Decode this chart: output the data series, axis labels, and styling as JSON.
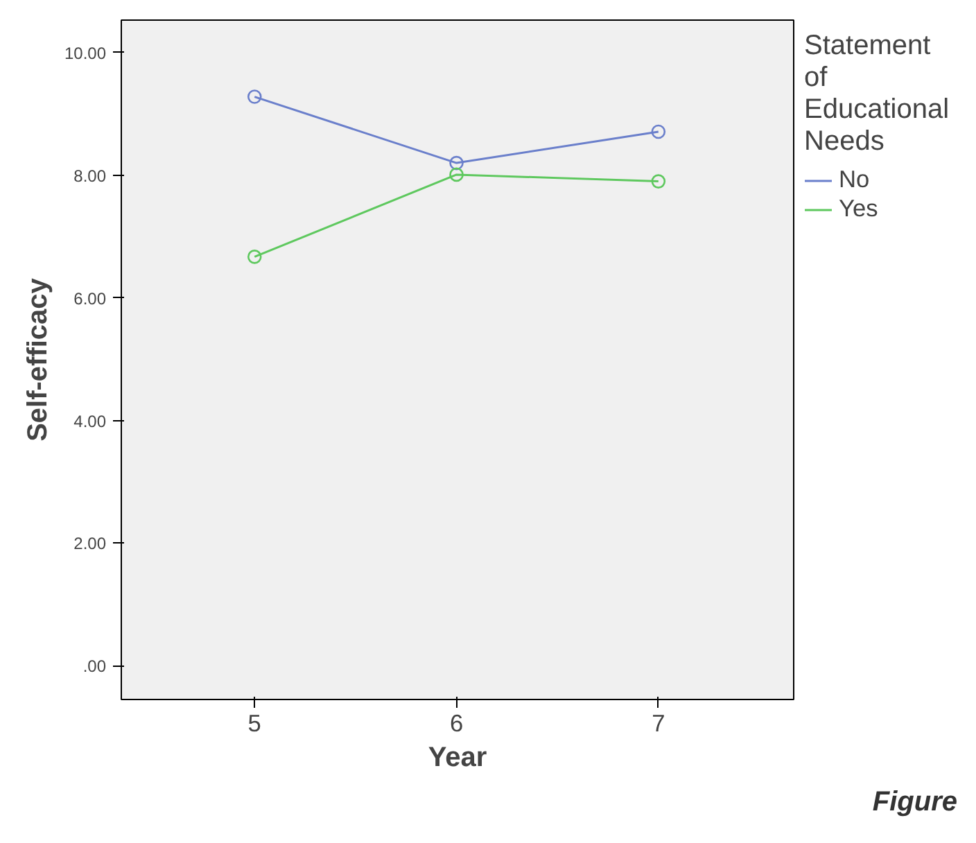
{
  "chart_data": {
    "type": "line",
    "xlabel": "Year",
    "ylabel": "Self-efficacy",
    "legend_title": "Statement of Educational Needs",
    "x": [
      5,
      6,
      7
    ],
    "series": [
      {
        "name": "No",
        "color": "#6a7fcb",
        "values": [
          9.28,
          8.2,
          8.71
        ]
      },
      {
        "name": "Yes",
        "color": "#5ec85e",
        "values": [
          6.67,
          8.01,
          7.9
        ]
      }
    ],
    "xlim": [
      4.34,
      7.67
    ],
    "xticks": [
      5,
      6,
      7
    ],
    "ylim": [
      -0.55,
      10.53
    ],
    "yticks": [
      {
        "value": 0,
        "label": ".00"
      },
      {
        "value": 2,
        "label": "2.00"
      },
      {
        "value": 4,
        "label": "4.00"
      },
      {
        "value": 6,
        "label": "6.00"
      },
      {
        "value": 8,
        "label": "8.00"
      },
      {
        "value": 10,
        "label": "10.00"
      }
    ],
    "marker": "circle",
    "line_style": "solid",
    "grid": false,
    "legend": "right",
    "annotations": [
      "Figure"
    ]
  }
}
